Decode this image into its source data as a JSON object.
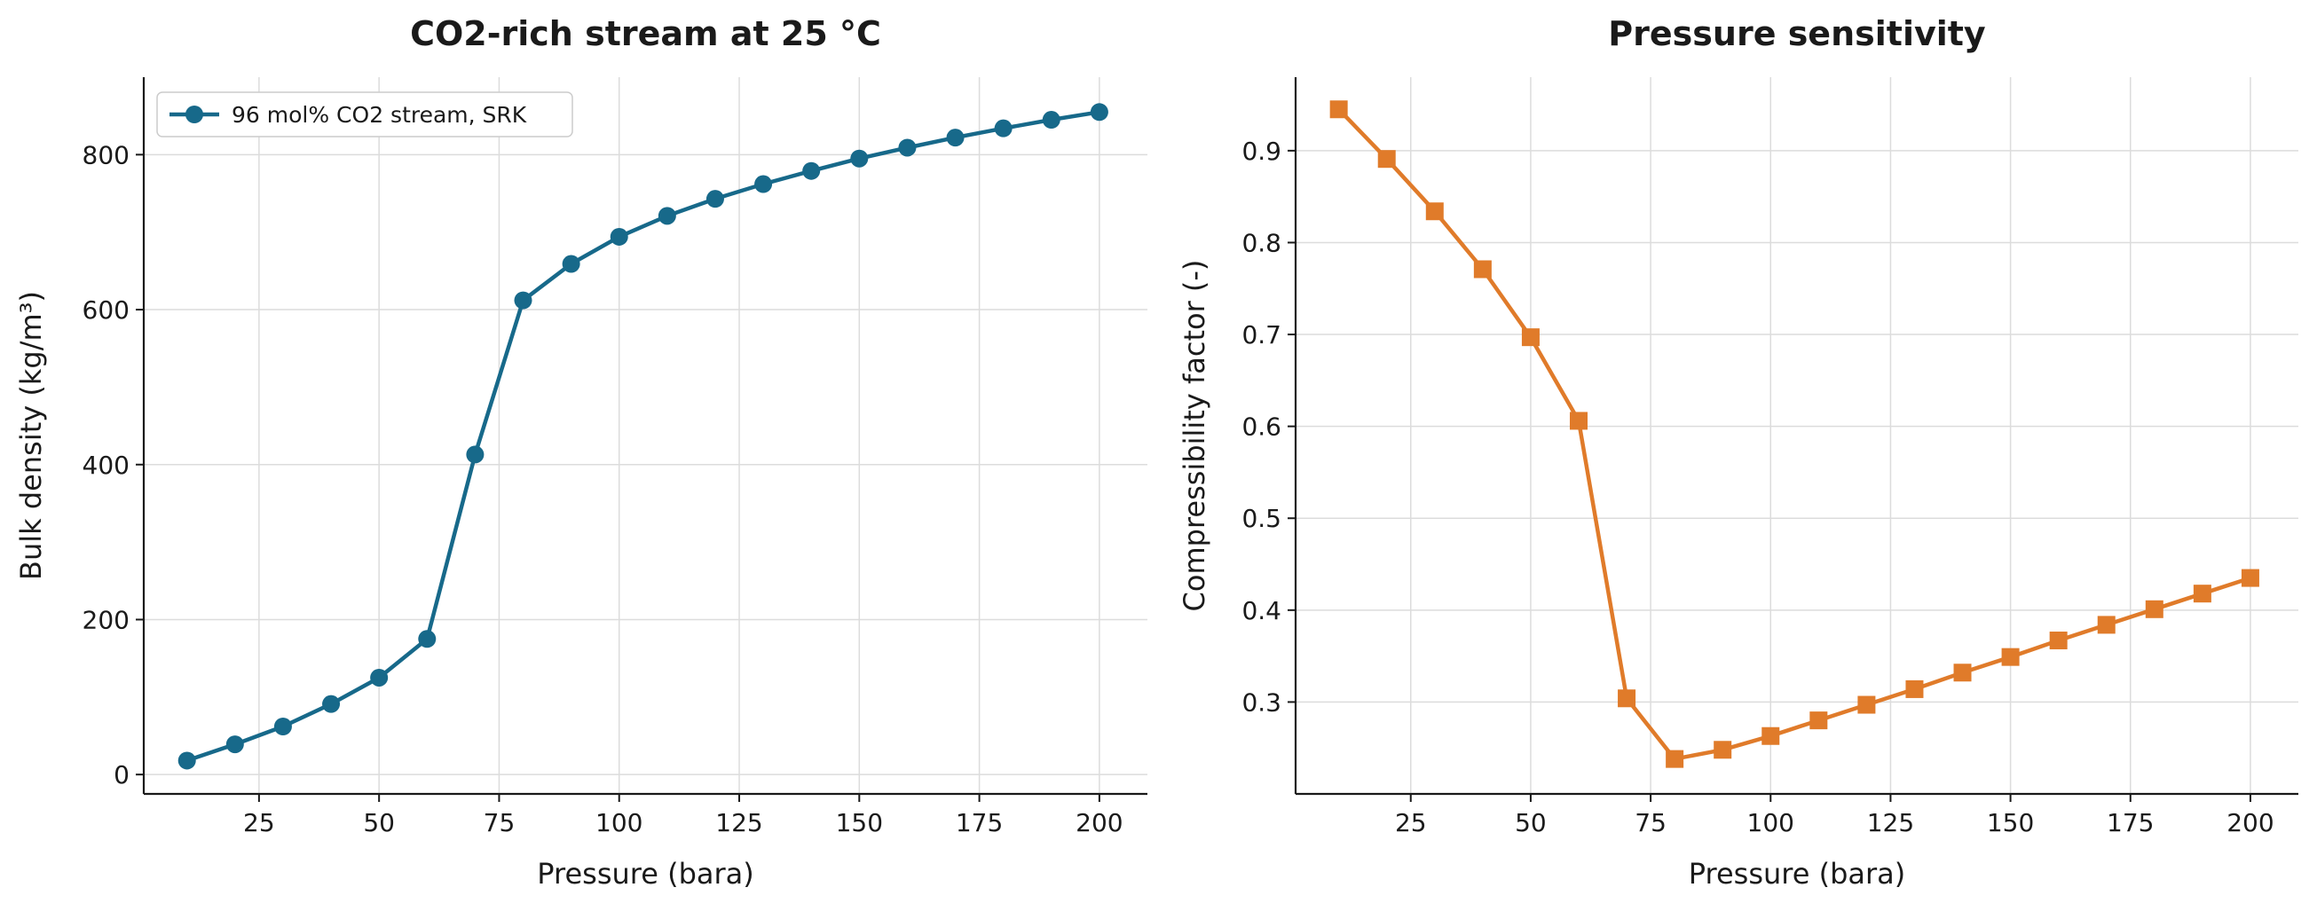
{
  "chart_data": [
    {
      "type": "line",
      "title": "CO2-rich stream at 25 °C",
      "xlabel": "Pressure (bara)",
      "ylabel": "Bulk density (kg/m³)",
      "xlim": [
        1,
        210
      ],
      "ylim": [
        -25,
        900
      ],
      "xticks": [
        25,
        50,
        75,
        100,
        125,
        150,
        175,
        200
      ],
      "yticks": [
        0,
        200,
        400,
        600,
        800
      ],
      "grid": true,
      "legend_position": "top-left",
      "series": [
        {
          "name": "96 mol% CO2 stream, SRK",
          "color": "#17698a",
          "marker": "circle",
          "x": [
            10,
            20,
            30,
            40,
            50,
            60,
            70,
            80,
            90,
            100,
            110,
            120,
            130,
            140,
            150,
            160,
            170,
            180,
            190,
            200
          ],
          "y": [
            18,
            39,
            62,
            91,
            125,
            175,
            413,
            612,
            659,
            694,
            721,
            743,
            762,
            779,
            795,
            809,
            822,
            834,
            845,
            855
          ]
        }
      ]
    },
    {
      "type": "line",
      "title": "Pressure sensitivity",
      "xlabel": "Pressure (bara)",
      "ylabel": "Compressibility factor (-)",
      "xlim": [
        1,
        210
      ],
      "ylim": [
        0.2,
        0.98
      ],
      "xticks": [
        25,
        50,
        75,
        100,
        125,
        150,
        175,
        200
      ],
      "yticks": [
        0.3,
        0.4,
        0.5,
        0.6,
        0.7,
        0.8,
        0.9
      ],
      "grid": true,
      "series": [
        {
          "color": "#e07b2a",
          "marker": "square",
          "x": [
            10,
            20,
            30,
            40,
            50,
            60,
            70,
            80,
            90,
            100,
            110,
            120,
            130,
            140,
            150,
            160,
            170,
            180,
            190,
            200
          ],
          "y": [
            0.945,
            0.891,
            0.834,
            0.771,
            0.697,
            0.606,
            0.304,
            0.238,
            0.248,
            0.263,
            0.28,
            0.297,
            0.314,
            0.332,
            0.349,
            0.367,
            0.384,
            0.401,
            0.418,
            0.435
          ]
        }
      ]
    }
  ]
}
